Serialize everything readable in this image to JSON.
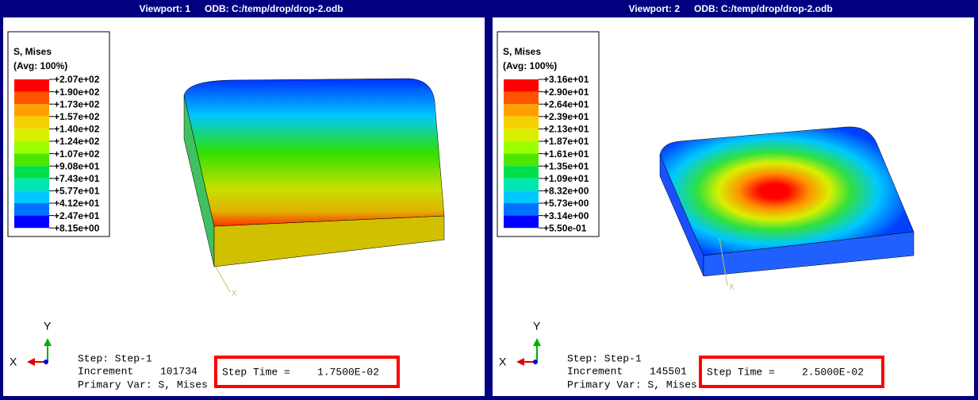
{
  "viewports": [
    {
      "title": "Viewport: 1",
      "odb": "ODB: C:/temp/drop/drop-2.odb",
      "legend": {
        "title": "S, Mises",
        "subtitle": "(Avg: 100%)",
        "labels": [
          "+2.07e+02",
          "+1.90e+02",
          "+1.73e+02",
          "+1.57e+02",
          "+1.40e+02",
          "+1.24e+02",
          "+1.07e+02",
          "+9.08e+01",
          "+7.43e+01",
          "+5.77e+01",
          "+4.12e+01",
          "+2.47e+01",
          "+8.15e+00"
        ]
      },
      "model_axis": "X",
      "triad": {
        "y": "Y",
        "x": "X"
      },
      "info": {
        "step": "Step: Step-1",
        "increment_label": "Increment",
        "increment": "101734",
        "step_time_label": "Step Time =",
        "step_time": "1.7500E-02",
        "primary_var": "Primary Var: S, Mises"
      }
    },
    {
      "title": "Viewport: 2",
      "odb": "ODB: C:/temp/drop/drop-2.odb",
      "legend": {
        "title": "S, Mises",
        "subtitle": "(Avg: 100%)",
        "labels": [
          "+3.16e+01",
          "+2.90e+01",
          "+2.64e+01",
          "+2.39e+01",
          "+2.13e+01",
          "+1.87e+01",
          "+1.61e+01",
          "+1.35e+01",
          "+1.09e+01",
          "+8.32e+00",
          "+5.73e+00",
          "+3.14e+00",
          "+5.50e-01"
        ]
      },
      "model_axis": "X",
      "triad": {
        "y": "Y",
        "x": "X"
      },
      "info": {
        "step": "Step: Step-1",
        "increment_label": "Increment",
        "increment": "145501",
        "step_time_label": "Step Time =",
        "step_time": "2.5000E-02",
        "primary_var": "Primary Var: S, Mises"
      }
    }
  ]
}
